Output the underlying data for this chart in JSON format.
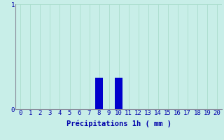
{
  "categories": [
    0,
    1,
    2,
    3,
    4,
    5,
    6,
    7,
    8,
    9,
    10,
    11,
    12,
    13,
    14,
    15,
    16,
    17,
    18,
    19,
    20
  ],
  "values": [
    0,
    0,
    0,
    0,
    0,
    0,
    0,
    0,
    0.3,
    0,
    0.3,
    0,
    0,
    0,
    0,
    0,
    0,
    0,
    0,
    0,
    0
  ],
  "bar_color": "#0000cc",
  "background_color": "#c8eee8",
  "grid_color": "#aaddcc",
  "axis_color": "#888899",
  "text_color": "#0000aa",
  "xlabel": "Précipitations 1h ( mm )",
  "ylim": [
    0,
    1
  ],
  "yticks": [
    0,
    1
  ],
  "xlim": [
    -0.5,
    20.5
  ],
  "bar_width": 0.75,
  "tick_fontsize": 6.5,
  "label_fontsize": 7.5
}
